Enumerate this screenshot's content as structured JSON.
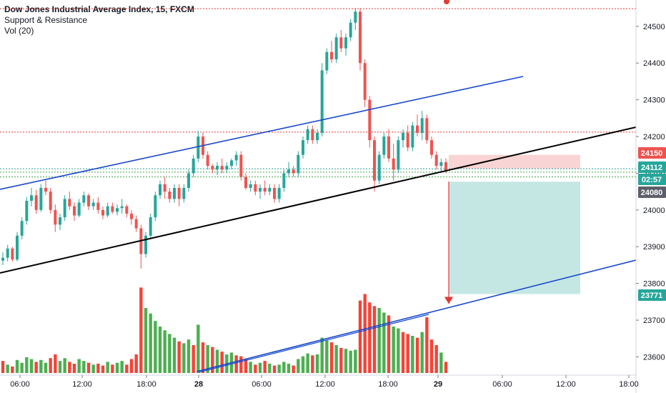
{
  "legend": {
    "title": "Dow Jones Industrial Average Index, 15, FXCM",
    "line2": "Support & Resistance",
    "line3": "Vol (20)"
  },
  "colors": {
    "up": "#26a69a",
    "down": "#ef5350",
    "vol_up": "#4caf50",
    "vol_down": "#f44336",
    "channel_blue": "#1848cc",
    "channel_black": "#000000",
    "resistance_red": "#e53935",
    "support_green": "#43a047",
    "stop_zone": "#f8cfcf",
    "target_zone": "#b2dfdb"
  },
  "chart_data": {
    "type": "candlestick",
    "symbol": "Dow Jones Industrial Average Index",
    "timeframe": "15",
    "source": "FXCM",
    "y_ticks": [
      24500,
      24400,
      24300,
      24200,
      24100,
      24000,
      23900,
      23800,
      23700,
      23600
    ],
    "ylim": [
      23560,
      24560
    ],
    "x_tick_labels": [
      "06:00",
      "12:00",
      "18:00",
      "28",
      "06:00",
      "12:00",
      "18:00",
      "29",
      "06:00",
      "12:00",
      "18:00"
    ],
    "price_badges": [
      {
        "value": "24150",
        "color": "#ef5350"
      },
      {
        "value": "24112",
        "color": "#26a69a"
      },
      {
        "value": "02:57",
        "color": "#26a69a"
      },
      {
        "value": "24080",
        "color": "#5d606b"
      },
      {
        "value": "23771",
        "color": "#26a69a"
      }
    ],
    "horizontal_levels": [
      {
        "value": 24548,
        "color": "#e53935",
        "style": "dotted"
      },
      {
        "value": 24212,
        "color": "#e53935",
        "style": "dotted"
      },
      {
        "value": 24112,
        "color": "#26a69a",
        "style": "dotted"
      },
      {
        "value": 24103,
        "color": "#43a047",
        "style": "dotted"
      },
      {
        "value": 24090,
        "color": "#43a047",
        "style": "dotted"
      }
    ],
    "position": {
      "type": "short",
      "entry": 24112,
      "stop": 24150,
      "target": 23771
    },
    "candles": [
      [
        23862,
        23885,
        23850,
        23870
      ],
      [
        23870,
        23905,
        23860,
        23895
      ],
      [
        23895,
        23900,
        23860,
        23865
      ],
      [
        23865,
        23940,
        23860,
        23930
      ],
      [
        23930,
        23980,
        23920,
        23970
      ],
      [
        23970,
        24035,
        23960,
        24025
      ],
      [
        24025,
        24060,
        24010,
        24040
      ],
      [
        24040,
        24055,
        23990,
        24000
      ],
      [
        24000,
        24070,
        23995,
        24060
      ],
      [
        24060,
        24080,
        24040,
        24050
      ],
      [
        24050,
        24060,
        23990,
        24000
      ],
      [
        24000,
        24015,
        23940,
        23960
      ],
      [
        23960,
        23990,
        23945,
        23980
      ],
      [
        23980,
        24040,
        23970,
        24030
      ],
      [
        24030,
        24050,
        24000,
        24010
      ],
      [
        24010,
        24020,
        23970,
        23985
      ],
      [
        23985,
        24030,
        23980,
        24020
      ],
      [
        24020,
        24050,
        24010,
        24040
      ],
      [
        24040,
        24045,
        24000,
        24010
      ],
      [
        24010,
        24030,
        24000,
        24020
      ],
      [
        24020,
        24035,
        23990,
        24000
      ],
      [
        24000,
        24010,
        23975,
        23985
      ],
      [
        23985,
        24020,
        23980,
        24010
      ],
      [
        24010,
        24020,
        23990,
        23995
      ],
      [
        23995,
        24015,
        23985,
        24005
      ],
      [
        24005,
        24030,
        23990,
        24010
      ],
      [
        24010,
        24015,
        23980,
        23990
      ],
      [
        23990,
        24000,
        23960,
        23975
      ],
      [
        23975,
        23985,
        23940,
        23950
      ],
      [
        23950,
        23960,
        23840,
        23880
      ],
      [
        23880,
        23940,
        23870,
        23930
      ],
      [
        23930,
        23990,
        23920,
        23980
      ],
      [
        23980,
        24050,
        23970,
        24040
      ],
      [
        24040,
        24080,
        24030,
        24070
      ],
      [
        24070,
        24090,
        24030,
        24050
      ],
      [
        24050,
        24060,
        24020,
        24030
      ],
      [
        24030,
        24070,
        24020,
        24060
      ],
      [
        24060,
        24070,
        24010,
        24030
      ],
      [
        24030,
        24070,
        24020,
        24060
      ],
      [
        24060,
        24110,
        24050,
        24100
      ],
      [
        24100,
        24150,
        24090,
        24140
      ],
      [
        24140,
        24215,
        24130,
        24200
      ],
      [
        24200,
        24210,
        24140,
        24150
      ],
      [
        24150,
        24160,
        24110,
        24120
      ],
      [
        24120,
        24125,
        24100,
        24110
      ],
      [
        24110,
        24130,
        24095,
        24120
      ],
      [
        24120,
        24140,
        24100,
        24110
      ],
      [
        24110,
        24130,
        24100,
        24120
      ],
      [
        24120,
        24140,
        24110,
        24135
      ],
      [
        24135,
        24160,
        24120,
        24150
      ],
      [
        24150,
        24160,
        24080,
        24090
      ],
      [
        24090,
        24100,
        24055,
        24060
      ],
      [
        24060,
        24080,
        24050,
        24070
      ],
      [
        24070,
        24080,
        24040,
        24050
      ],
      [
        24050,
        24070,
        24030,
        24060
      ],
      [
        24060,
        24080,
        24040,
        24050
      ],
      [
        24050,
        24070,
        24040,
        24060
      ],
      [
        24060,
        24070,
        24020,
        24030
      ],
      [
        24030,
        24070,
        24020,
        24060
      ],
      [
        24060,
        24110,
        24050,
        24100
      ],
      [
        24100,
        24130,
        24090,
        24110
      ],
      [
        24110,
        24120,
        24090,
        24100
      ],
      [
        24100,
        24160,
        24090,
        24150
      ],
      [
        24150,
        24200,
        24140,
        24190
      ],
      [
        24190,
        24230,
        24180,
        24220
      ],
      [
        24220,
        24230,
        24180,
        24190
      ],
      [
        24190,
        24220,
        24180,
        24210
      ],
      [
        24210,
        24400,
        24200,
        24380
      ],
      [
        24380,
        24440,
        24370,
        24430
      ],
      [
        24430,
        24460,
        24400,
        24410
      ],
      [
        24410,
        24480,
        24400,
        24470
      ],
      [
        24470,
        24490,
        24430,
        24440
      ],
      [
        24440,
        24480,
        24420,
        24470
      ],
      [
        24470,
        24520,
        24460,
        24510
      ],
      [
        24510,
        24550,
        24490,
        24540
      ],
      [
        24540,
        24550,
        24380,
        24400
      ],
      [
        24400,
        24410,
        24280,
        24300
      ],
      [
        24300,
        24310,
        24170,
        24190
      ],
      [
        24190,
        24200,
        24050,
        24080
      ],
      [
        24080,
        24160,
        24070,
        24150
      ],
      [
        24150,
        24210,
        24140,
        24200
      ],
      [
        24200,
        24220,
        24130,
        24140
      ],
      [
        24140,
        24180,
        24080,
        24110
      ],
      [
        24110,
        24200,
        24100,
        24190
      ],
      [
        24190,
        24220,
        24170,
        24210
      ],
      [
        24210,
        24230,
        24160,
        24170
      ],
      [
        24170,
        24240,
        24160,
        24230
      ],
      [
        24230,
        24260,
        24200,
        24210
      ],
      [
        24210,
        24270,
        24190,
        24250
      ],
      [
        24250,
        24260,
        24180,
        24190
      ],
      [
        24190,
        24200,
        24140,
        24150
      ],
      [
        24150,
        24160,
        24110,
        24120
      ],
      [
        24120,
        24140,
        24100,
        24130
      ],
      [
        24130,
        24140,
        24100,
        24105
      ]
    ],
    "volume_ylim": [
      0,
      1000
    ],
    "volumes": [
      [
        130,
        0
      ],
      [
        90,
        1
      ],
      [
        70,
        0
      ],
      [
        140,
        1
      ],
      [
        110,
        1
      ],
      [
        170,
        1
      ],
      [
        150,
        1
      ],
      [
        120,
        0
      ],
      [
        140,
        1
      ],
      [
        110,
        1
      ],
      [
        160,
        0
      ],
      [
        200,
        0
      ],
      [
        130,
        1
      ],
      [
        160,
        1
      ],
      [
        120,
        0
      ],
      [
        100,
        0
      ],
      [
        150,
        1
      ],
      [
        130,
        1
      ],
      [
        110,
        0
      ],
      [
        90,
        1
      ],
      [
        100,
        0
      ],
      [
        80,
        0
      ],
      [
        120,
        1
      ],
      [
        90,
        0
      ],
      [
        110,
        1
      ],
      [
        130,
        1
      ],
      [
        90,
        0
      ],
      [
        150,
        0
      ],
      [
        200,
        0
      ],
      [
        920,
        0
      ],
      [
        700,
        1
      ],
      [
        640,
        1
      ],
      [
        560,
        1
      ],
      [
        500,
        1
      ],
      [
        460,
        1
      ],
      [
        420,
        1
      ],
      [
        380,
        1
      ],
      [
        340,
        0
      ],
      [
        320,
        1
      ],
      [
        360,
        1
      ],
      [
        300,
        0
      ],
      [
        520,
        1
      ],
      [
        330,
        0
      ],
      [
        300,
        1
      ],
      [
        280,
        0
      ],
      [
        250,
        1
      ],
      [
        230,
        0
      ],
      [
        200,
        1
      ],
      [
        220,
        1
      ],
      [
        190,
        0
      ],
      [
        180,
        0
      ],
      [
        150,
        0
      ],
      [
        120,
        1
      ],
      [
        90,
        0
      ],
      [
        110,
        1
      ],
      [
        130,
        0
      ],
      [
        100,
        1
      ],
      [
        80,
        0
      ],
      [
        90,
        1
      ],
      [
        120,
        1
      ],
      [
        100,
        1
      ],
      [
        80,
        0
      ],
      [
        150,
        1
      ],
      [
        180,
        1
      ],
      [
        210,
        1
      ],
      [
        190,
        0
      ],
      [
        200,
        1
      ],
      [
        380,
        1
      ],
      [
        350,
        1
      ],
      [
        330,
        0
      ],
      [
        300,
        1
      ],
      [
        270,
        0
      ],
      [
        260,
        1
      ],
      [
        240,
        1
      ],
      [
        250,
        1
      ],
      [
        780,
        0
      ],
      [
        850,
        0
      ],
      [
        760,
        0
      ],
      [
        720,
        0
      ],
      [
        700,
        1
      ],
      [
        650,
        1
      ],
      [
        620,
        0
      ],
      [
        500,
        1
      ],
      [
        480,
        1
      ],
      [
        440,
        0
      ],
      [
        420,
        0
      ],
      [
        400,
        1
      ],
      [
        380,
        0
      ],
      [
        440,
        1
      ],
      [
        600,
        0
      ],
      [
        360,
        0
      ],
      [
        300,
        0
      ],
      [
        220,
        1
      ],
      [
        120,
        0
      ]
    ]
  }
}
